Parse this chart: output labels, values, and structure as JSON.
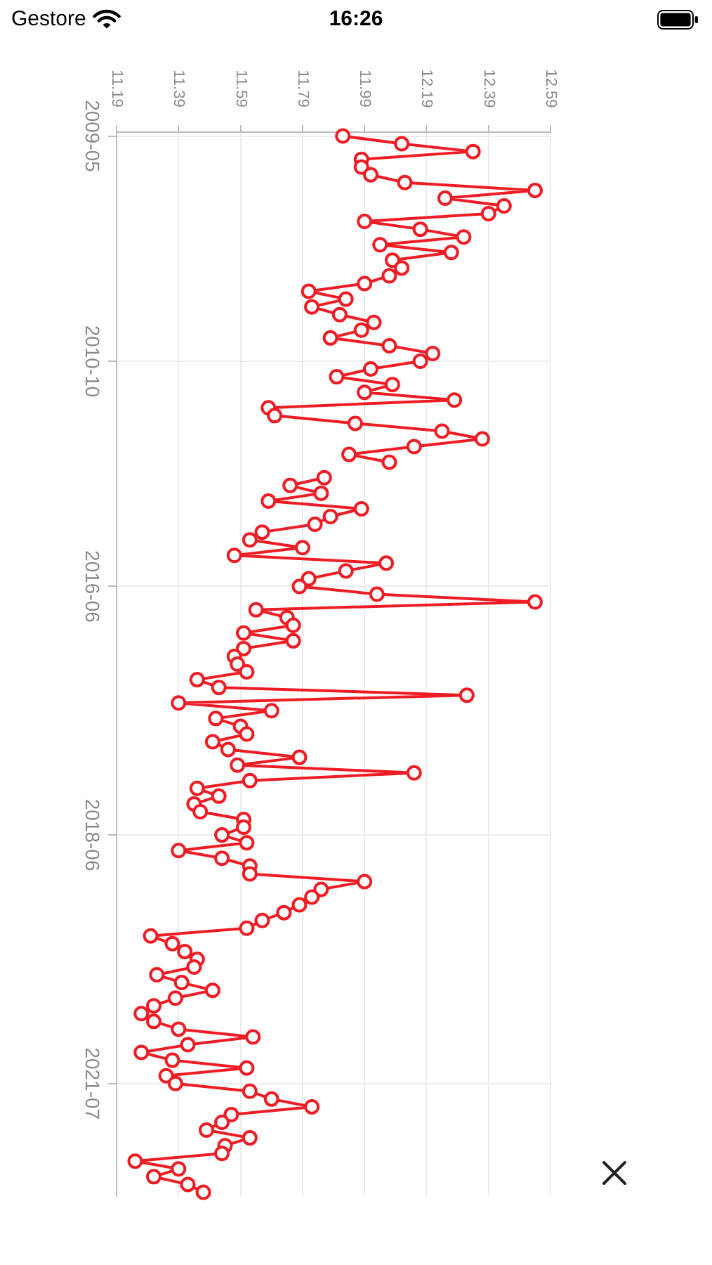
{
  "chart_data": {
    "type": "line",
    "orientation": "horizontal",
    "categories": [
      "2009-05",
      null,
      null,
      null,
      null,
      null,
      null,
      null,
      null,
      null,
      null,
      null,
      null,
      null,
      null,
      null,
      null,
      null,
      null,
      null,
      null,
      null,
      null,
      null,
      null,
      null,
      null,
      null,
      null,
      "2010-10",
      null,
      null,
      null,
      null,
      null,
      null,
      null,
      null,
      null,
      null,
      null,
      null,
      null,
      null,
      null,
      null,
      null,
      null,
      null,
      null,
      null,
      null,
      null,
      null,
      null,
      null,
      null,
      null,
      "2016-06",
      null,
      null,
      null,
      null,
      null,
      null,
      null,
      null,
      null,
      null,
      null,
      null,
      null,
      null,
      null,
      null,
      null,
      null,
      null,
      null,
      null,
      null,
      null,
      null,
      null,
      null,
      null,
      null,
      null,
      null,
      null,
      "2018-06",
      null,
      null,
      null,
      null,
      null,
      null,
      null,
      null,
      null,
      null,
      null,
      null,
      null,
      null,
      null,
      null,
      null,
      null,
      null,
      null,
      null,
      null,
      null,
      null,
      null,
      null,
      null,
      null,
      null,
      null,
      null,
      "2021-07",
      null,
      null,
      null,
      null,
      null,
      null,
      null,
      null,
      null,
      null,
      null,
      null,
      null,
      null
    ],
    "values": [
      11.92,
      12.11,
      12.34,
      11.98,
      11.98,
      12.01,
      12.12,
      12.54,
      12.25,
      12.44,
      12.39,
      11.99,
      12.17,
      12.31,
      12.04,
      12.27,
      12.08,
      12.11,
      12.07,
      11.99,
      11.81,
      11.93,
      11.82,
      11.91,
      12.02,
      11.98,
      11.88,
      12.07,
      12.21,
      12.17,
      12.01,
      11.9,
      12.08,
      11.99,
      12.28,
      11.68,
      11.7,
      11.96,
      12.24,
      12.37,
      12.15,
      11.94,
      12.07,
      null,
      11.86,
      11.75,
      11.85,
      11.68,
      11.98,
      11.88,
      11.83,
      11.66,
      11.62,
      11.79,
      11.57,
      12.06,
      11.93,
      11.81,
      11.78,
      12.03,
      12.54,
      11.64,
      11.74,
      11.76,
      11.6,
      11.76,
      11.6,
      11.57,
      11.58,
      11.61,
      11.45,
      11.52,
      12.32,
      11.39,
      11.69,
      11.51,
      11.59,
      11.61,
      11.5,
      11.55,
      11.78,
      11.58,
      12.15,
      11.62,
      11.45,
      11.52,
      11.44,
      11.46,
      11.6,
      11.6,
      11.53,
      11.61,
      11.39,
      11.53,
      11.62,
      11.62,
      11.99,
      11.85,
      11.82,
      11.78,
      11.73,
      11.66,
      11.61,
      11.3,
      11.37,
      11.41,
      11.45,
      11.44,
      11.32,
      11.4,
      11.5,
      11.38,
      11.31,
      11.27,
      11.31,
      11.39,
      11.63,
      11.42,
      11.27,
      11.37,
      11.61,
      11.35,
      11.38,
      11.62,
      11.69,
      11.82,
      11.56,
      11.53,
      11.48,
      11.62,
      11.54,
      11.53,
      11.25,
      11.39,
      11.31,
      11.42,
      11.47
    ],
    "color": "#ef1c24",
    "xlim": [
      11.19,
      12.59
    ],
    "xticks": [
      11.19,
      11.39,
      11.59,
      11.79,
      11.99,
      12.19,
      12.39,
      12.59
    ],
    "grid": true,
    "marker": "circle",
    "line_style": "solid",
    "annotations": [
      "Gestore",
      "16:26"
    ]
  }
}
